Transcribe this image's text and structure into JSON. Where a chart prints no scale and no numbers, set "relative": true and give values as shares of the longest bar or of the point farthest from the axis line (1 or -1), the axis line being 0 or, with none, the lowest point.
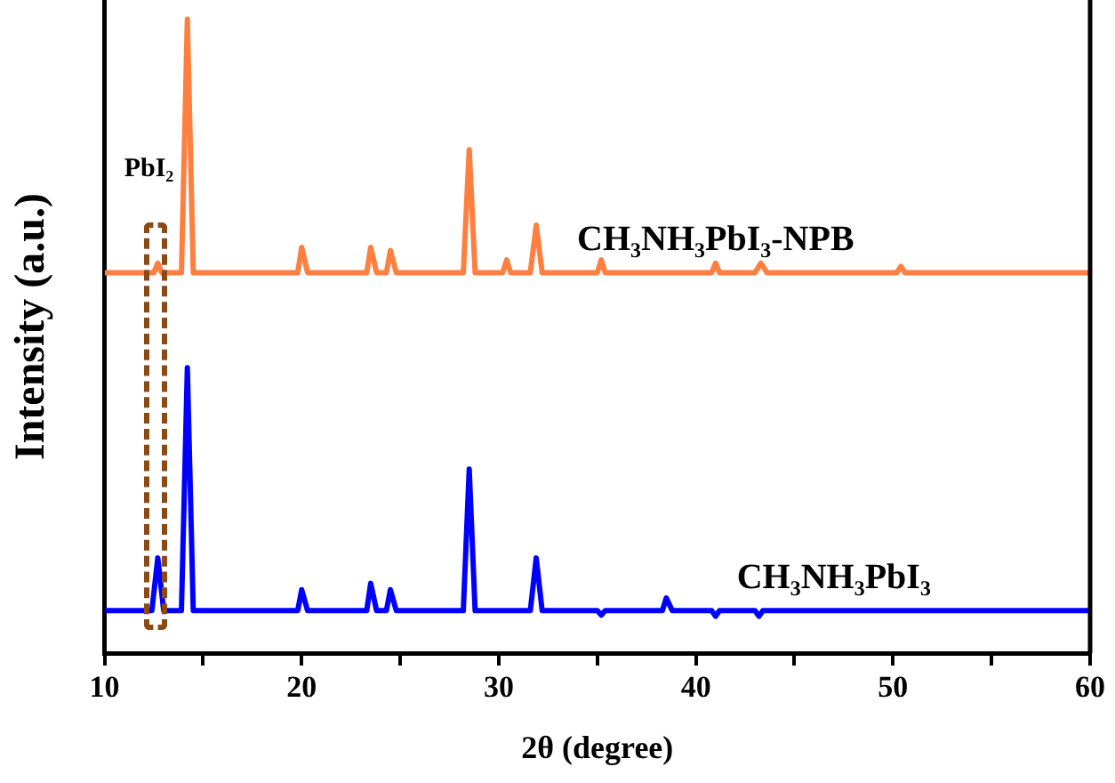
{
  "chart_data": {
    "type": "line",
    "relative": true,
    "xlabel": "2θ (degree)",
    "ylabel": "Intensity (a.u.)",
    "xlim": [
      10,
      60
    ],
    "xticks": [
      10,
      {
        "value": 15,
        "label": null
      },
      20,
      {
        "value": 25,
        "label": null
      },
      30,
      {
        "value": 35,
        "label": null
      },
      40,
      {
        "value": 45,
        "label": null
      },
      50,
      {
        "value": 55,
        "label": null
      },
      60
    ],
    "grid": false,
    "legend": false,
    "marker": "none",
    "line_style": "solid",
    "annotations": [
      "PbI₂"
    ],
    "series": [
      {
        "name": "CH₃NH₃PbI₃-NPB",
        "color": "#ff7f3f",
        "x": [
          10,
          12.5,
          12.7,
          12.9,
          13.9,
          14.2,
          14.5,
          19.8,
          20.0,
          20.3,
          23.3,
          23.5,
          23.8,
          24.3,
          24.5,
          24.8,
          28.2,
          28.5,
          28.8,
          30.2,
          30.4,
          30.6,
          31.6,
          31.9,
          32.2,
          35.0,
          35.2,
          35.4,
          40.8,
          41.0,
          41.2,
          43.0,
          43.3,
          43.6,
          50.2,
          50.4,
          50.6,
          60
        ],
        "values": [
          0.6,
          0.6,
          0.615,
          0.6,
          0.6,
          1,
          0.6,
          0.6,
          0.64,
          0.6,
          0.6,
          0.64,
          0.6,
          0.6,
          0.635,
          0.6,
          0.6,
          0.794,
          0.6,
          0.6,
          0.62,
          0.6,
          0.6,
          0.675,
          0.6,
          0.6,
          0.62,
          0.6,
          0.6,
          0.615,
          0.6,
          0.6,
          0.615,
          0.6,
          0.6,
          0.61,
          0.6,
          0.6
        ]
      },
      {
        "name": "CH₃NH₃PbI₃",
        "color": "#0000ff",
        "x": [
          10,
          12.4,
          12.7,
          13.0,
          13.9,
          14.2,
          14.5,
          19.8,
          20.0,
          20.3,
          23.3,
          23.5,
          23.8,
          24.3,
          24.5,
          24.8,
          28.2,
          28.5,
          28.8,
          31.6,
          31.9,
          32.2,
          35.0,
          35.2,
          35.4,
          38.3,
          38.5,
          38.8,
          40.8,
          41.0,
          41.2,
          43.0,
          43.2,
          43.4,
          60
        ],
        "values": [
          0.067,
          0.067,
          0.15,
          0.067,
          0.067,
          0.45,
          0.067,
          0.067,
          0.1,
          0.067,
          0.067,
          0.11,
          0.067,
          0.067,
          0.1,
          0.067,
          0.067,
          0.29,
          0.067,
          0.067,
          0.15,
          0.067,
          0.067,
          0.06,
          0.067,
          0.067,
          0.087,
          0.067,
          0.067,
          0.058,
          0.067,
          0.067,
          0.058,
          0.067,
          0.067
        ]
      }
    ]
  }
}
